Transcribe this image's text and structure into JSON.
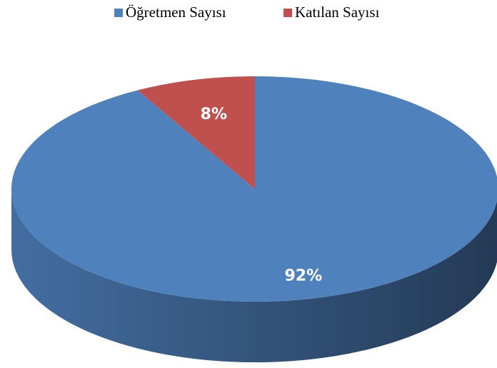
{
  "chart_data": {
    "type": "pie",
    "series": [
      {
        "name": "Öğretmen Sayısı",
        "color": "#4f81bd",
        "values": [
          92
        ],
        "value_labels": [
          "92%"
        ]
      },
      {
        "name": "Katılan Sayısı",
        "color": "#c0504d",
        "values": [
          8
        ],
        "value_labels": [
          "8%"
        ]
      }
    ],
    "legend": "top"
  }
}
